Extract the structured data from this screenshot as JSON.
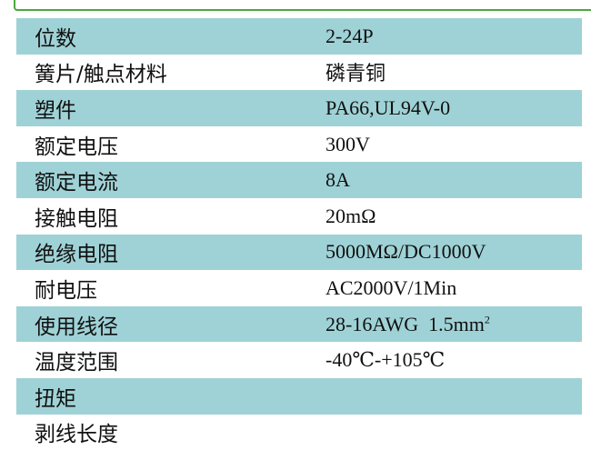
{
  "colors": {
    "row_shade": "#9fd2d6",
    "border": "#4aa83c"
  },
  "rows": [
    {
      "label": "位数",
      "value": "2-24P"
    },
    {
      "label": "簧片/触点材料",
      "value": "磷青铜"
    },
    {
      "label": "塑件",
      "value": "PA66,UL94V-0"
    },
    {
      "label": "额定电压",
      "value": "300V"
    },
    {
      "label": "额定电流",
      "value": "8A"
    },
    {
      "label": "接触电阻",
      "value": "20mΩ"
    },
    {
      "label": "绝缘电阻",
      "value": "5000MΩ/DC1000V"
    },
    {
      "label": "耐电压",
      "value": "AC2000V/1Min"
    },
    {
      "label": "使用线径",
      "value": "28-16AWG  1.5mm",
      "sup": "2"
    },
    {
      "label": "温度范围",
      "value": "-40℃-+105℃"
    },
    {
      "label": "扭矩",
      "value": ""
    },
    {
      "label": "剥线长度",
      "value": ""
    }
  ]
}
